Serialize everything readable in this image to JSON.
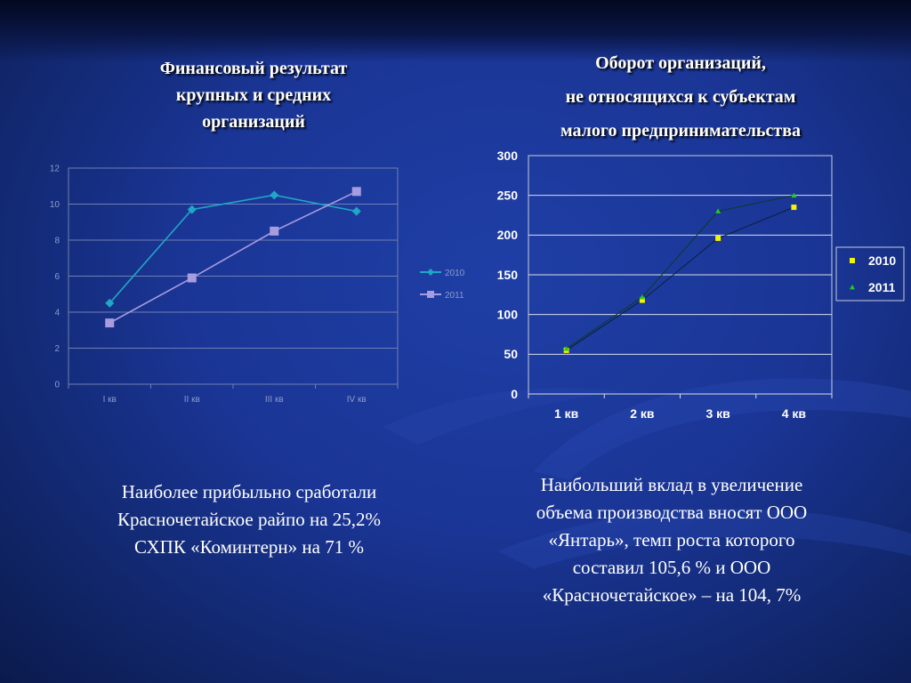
{
  "colors": {
    "background": "#1a3595",
    "text": "#ffffff",
    "left_series_2010": "#1fa6c8",
    "left_series_2011": "#a89ce0",
    "right_series_2010": "#f4f400",
    "right_series_2011": "#22cc22"
  },
  "left_title": [
    "Финансовый результат",
    "крупных и средних",
    "организаций"
  ],
  "right_title": [
    "Оборот организаций,",
    "не относящихся к субъектам",
    "малого предпринимательства"
  ],
  "left_caption": [
    "Наиболее прибыльно сработали",
    "Красночетайское райпо  на 25,2%",
    "СХПК «Коминтерн»  на 71 %"
  ],
  "right_caption": [
    "Наибольший вклад в увеличение",
    "объема производства вносят ООО",
    "«Янтарь», темп роста которого",
    "составил 105,6 % и ООО",
    "«Красночетайское» – на 104, 7%"
  ],
  "chart_data": [
    {
      "type": "line",
      "title": "Финансовый результат крупных и средних организаций",
      "categories": [
        "I кв",
        "II кв",
        "III кв",
        "IV кв"
      ],
      "series": [
        {
          "name": "2010",
          "values": [
            4.5,
            9.7,
            10.5,
            9.6
          ],
          "marker": "diamond"
        },
        {
          "name": "2011",
          "values": [
            3.4,
            5.9,
            8.5,
            10.7
          ],
          "marker": "square"
        }
      ],
      "ylim": [
        0,
        12
      ],
      "yticks": [
        "0",
        "2",
        "4",
        "6",
        "8",
        "10",
        "12"
      ],
      "grid": true,
      "legend": "right"
    },
    {
      "type": "line",
      "title": "Оборот организаций, не относящихся к субъектам малого предпринимательства",
      "categories": [
        "1 кв",
        "2 кв",
        "3 кв",
        "4 кв"
      ],
      "series": [
        {
          "name": "2010",
          "values": [
            55,
            118,
            196,
            235
          ],
          "marker": "square"
        },
        {
          "name": "2011",
          "values": [
            57,
            122,
            230,
            250
          ],
          "marker": "triangle"
        }
      ],
      "ylim": [
        0,
        300
      ],
      "yticks": [
        "0",
        "50",
        "100",
        "150",
        "200",
        "250",
        "300"
      ],
      "grid": true,
      "legend": "right"
    }
  ]
}
